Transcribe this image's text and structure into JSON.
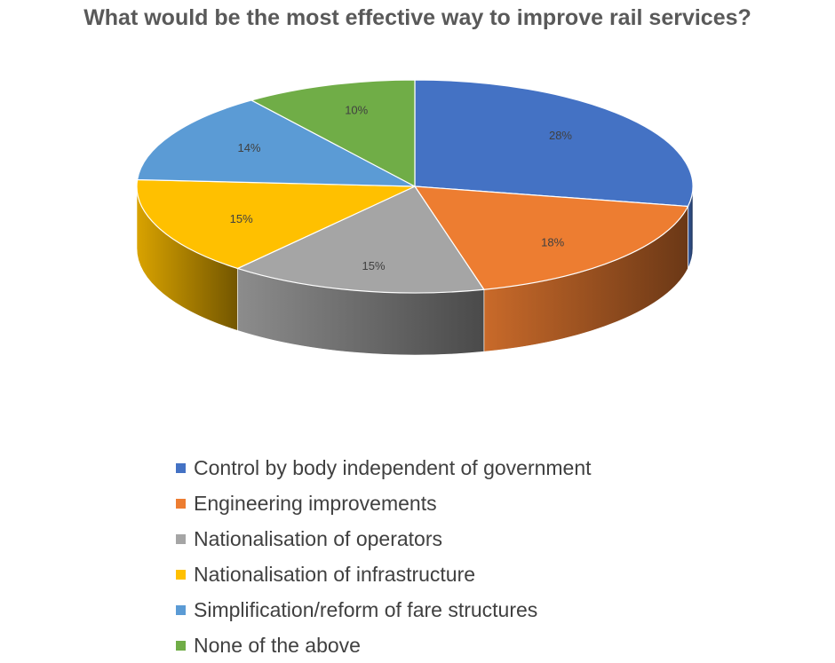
{
  "chart_data": {
    "type": "pie",
    "title": "What would be the most effective way to improve rail services?",
    "categories": [
      "Control by body independent of government",
      "Engineering improvements",
      "Nationalisation of operators",
      "Nationalisation of infrastructure",
      "Simplification/reform of fare structures",
      "None of the above"
    ],
    "values": [
      28,
      18,
      15,
      15,
      14,
      10
    ],
    "labels": [
      "28%",
      "18%",
      "15%",
      "15%",
      "14%",
      "10%"
    ],
    "colors": [
      "#4472C4",
      "#ED7D31",
      "#A5A5A5",
      "#FFC000",
      "#5B9BD5",
      "#70AD47"
    ],
    "style": "3d-pie",
    "legend_position": "bottom"
  }
}
